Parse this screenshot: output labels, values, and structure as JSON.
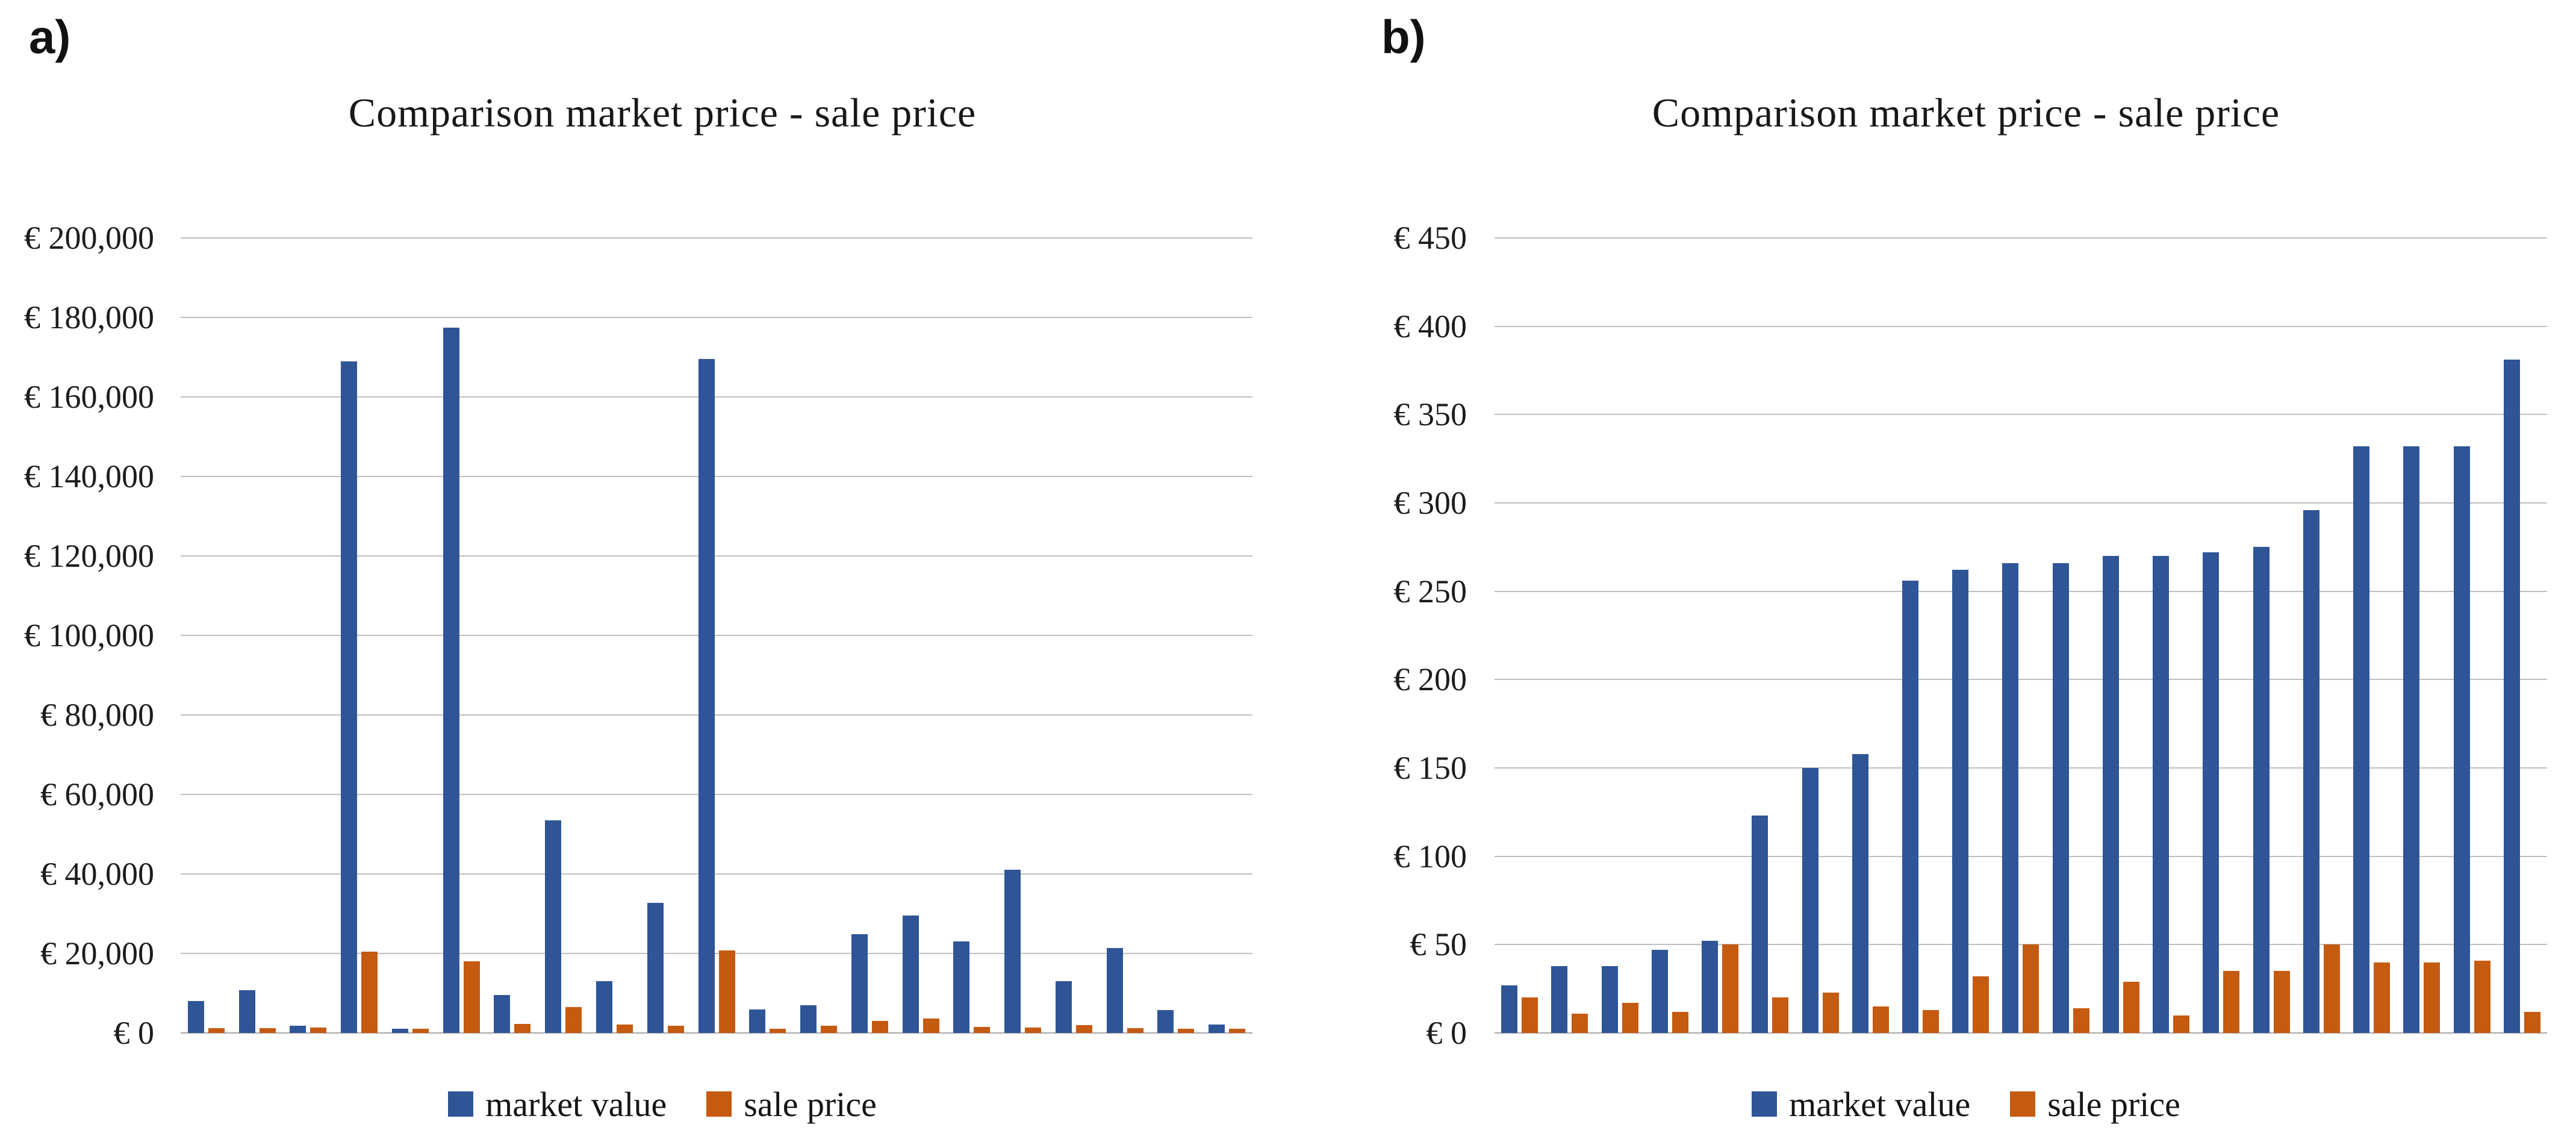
{
  "chart_data": [
    {
      "type": "bar",
      "panel_label": "a)",
      "title": "Comparison market price - sale price",
      "grid": true,
      "legend_position": "bottom",
      "y_axis": {
        "min": 0,
        "max": 200000,
        "step": 20000,
        "tick_labels": [
          "€ 200,000",
          "€ 180,000",
          "€ 160,000",
          "€ 140,000",
          "€ 120,000",
          "€ 100,000",
          "€ 80,000",
          "€ 60,000",
          "€ 40,000",
          "€ 20,000",
          "€ 0"
        ]
      },
      "x_axis": {
        "labels_visible": false,
        "n_categories": 21
      },
      "series": [
        {
          "name": "market value",
          "color": "#2F5597",
          "values": [
            8000,
            10800,
            1800,
            169000,
            1100,
            177500,
            9500,
            53500,
            13000,
            32700,
            169500,
            5900,
            6900,
            24800,
            29500,
            23000,
            41000,
            13100,
            21400,
            5700,
            2100
          ]
        },
        {
          "name": "sale price",
          "color": "#C55A11",
          "values": [
            1200,
            1200,
            1400,
            20500,
            1000,
            18000,
            2200,
            6500,
            2100,
            1800,
            20700,
            1100,
            1800,
            3000,
            3700,
            1500,
            1400,
            2000,
            1200,
            1000,
            1100
          ]
        }
      ]
    },
    {
      "type": "bar",
      "panel_label": "b)",
      "title": "Comparison market price - sale price",
      "grid": true,
      "legend_position": "bottom",
      "y_axis": {
        "min": 0,
        "max": 450,
        "step": 50,
        "tick_labels": [
          "€ 450",
          "€ 400",
          "€ 350",
          "€ 300",
          "€ 250",
          "€ 200",
          "€ 150",
          "€ 100",
          "€ 50",
          "€ 0"
        ]
      },
      "x_axis": {
        "labels_visible": false,
        "n_categories": 21
      },
      "series": [
        {
          "name": "market value",
          "color": "#2F5597",
          "values": [
            27,
            38,
            38,
            47,
            52,
            123,
            150,
            158,
            256,
            262,
            266,
            266,
            270,
            270,
            272,
            275,
            296,
            332,
            332,
            332,
            381
          ]
        },
        {
          "name": "sale price",
          "color": "#C55A11",
          "values": [
            20,
            11,
            17,
            12,
            50,
            20,
            23,
            15,
            13,
            32,
            50,
            14,
            29,
            10,
            35,
            35,
            50,
            40,
            40,
            41,
            12
          ]
        }
      ]
    }
  ]
}
